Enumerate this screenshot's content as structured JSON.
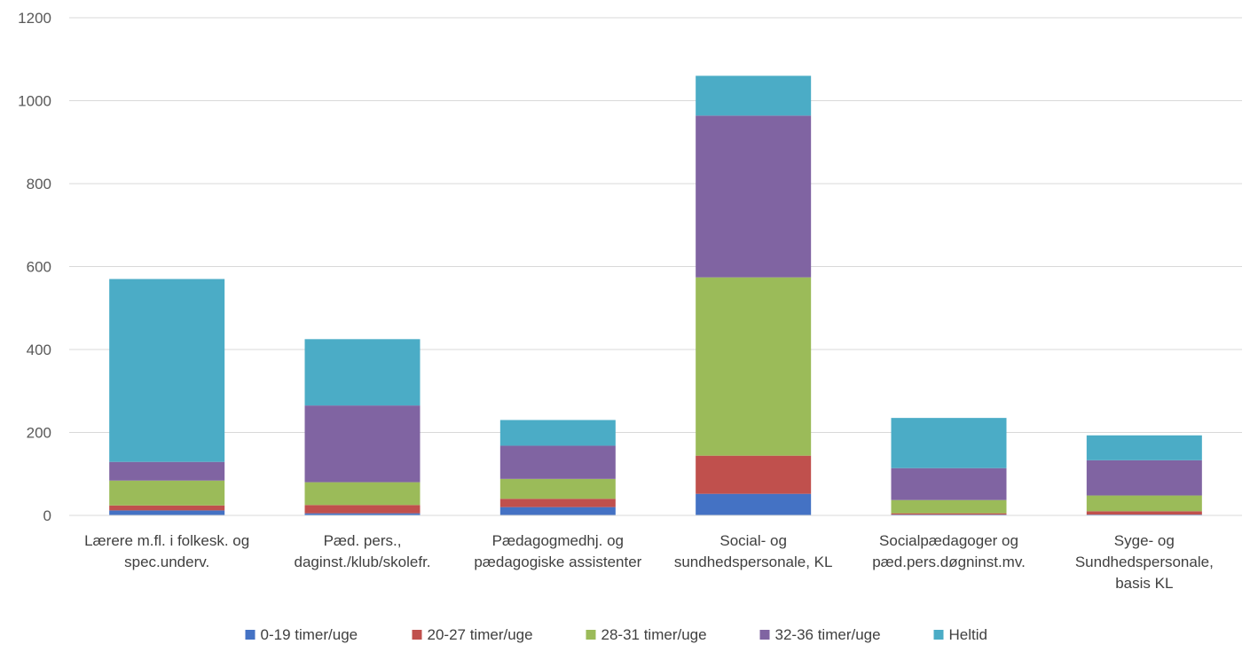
{
  "chart_data": {
    "type": "bar",
    "stacked": true,
    "title": "",
    "xlabel": "",
    "ylabel": "",
    "ylim": [
      0,
      1200
    ],
    "yticks": [
      0,
      200,
      400,
      600,
      800,
      1000,
      1200
    ],
    "grid": true,
    "legend": "bottom",
    "categories": [
      [
        "Lærere m.fl. i folkesk. og",
        "spec.underv."
      ],
      [
        "Pæd. pers.,",
        "daginst./klub/skolefr."
      ],
      [
        "Pædagogmedhj. og",
        "pædagogiske assistenter"
      ],
      [
        "Social- og",
        "sundhedspersonale, KL"
      ],
      [
        "Socialpædagoger og",
        "pæd.pers.døgninst.mv."
      ],
      [
        "Syge- og",
        "Sundhedspersonale,",
        "basis KL"
      ]
    ],
    "series": [
      {
        "name": "0-19 timer/uge",
        "color": "#4472C4",
        "values": [
          12,
          5,
          20,
          52,
          2,
          2
        ]
      },
      {
        "name": "20-27 timer/uge",
        "color": "#C0504D",
        "values": [
          12,
          20,
          20,
          92,
          3,
          8
        ]
      },
      {
        "name": "28-31 timer/uge",
        "color": "#9BBB59",
        "values": [
          60,
          55,
          48,
          430,
          32,
          38
        ]
      },
      {
        "name": "32-36 timer/uge",
        "color": "#8064A2",
        "values": [
          45,
          185,
          80,
          390,
          77,
          85
        ]
      },
      {
        "name": "Heltid",
        "color": "#4BACC6",
        "values": [
          441,
          160,
          62,
          96,
          121,
          60
        ]
      }
    ]
  }
}
